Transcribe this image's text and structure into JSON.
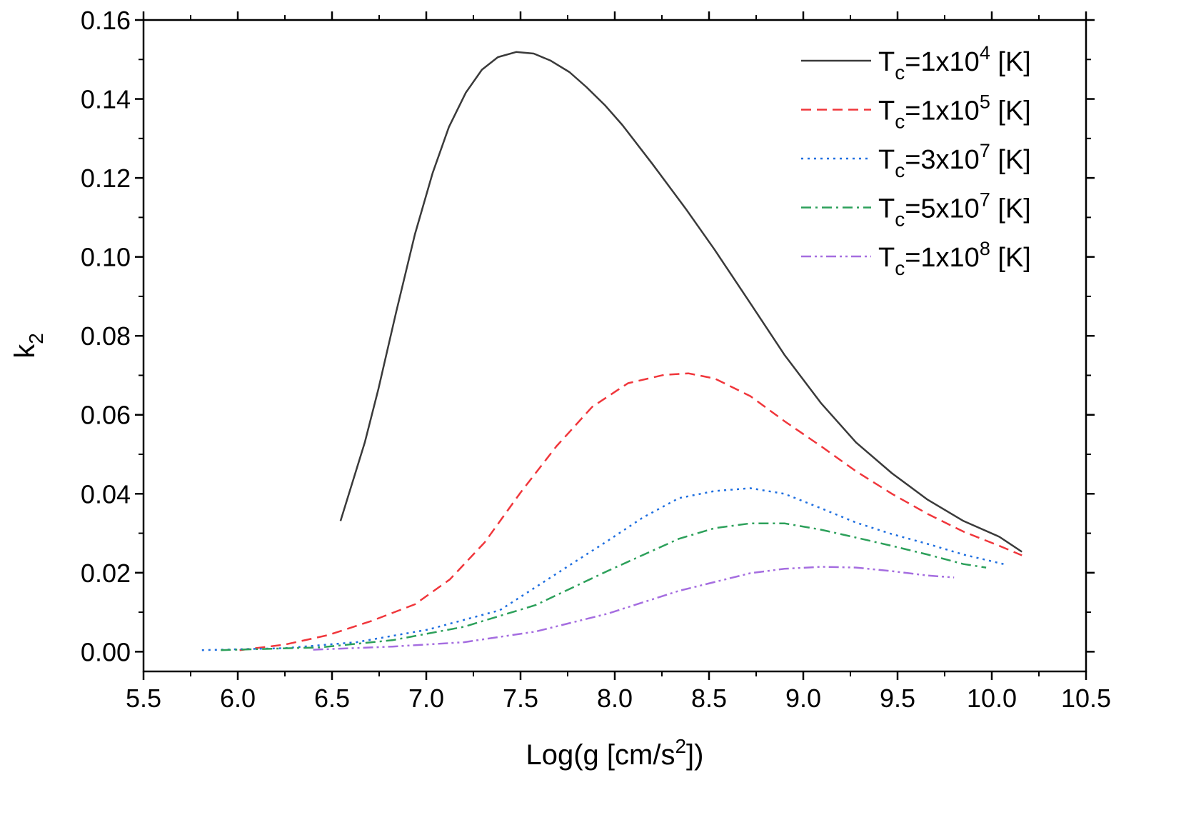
{
  "chart_data": {
    "type": "line",
    "title": "",
    "xlabel": {
      "text": "Log(g [cm/s",
      "sup": "2",
      "after": "])"
    },
    "ylabel": {
      "text": "k",
      "sub": "2"
    },
    "xlim": [
      5.5,
      10.5
    ],
    "ylim": [
      -0.005,
      0.16
    ],
    "xticks": [
      "5.5",
      "6.0",
      "6.5",
      "7.0",
      "7.5",
      "8.0",
      "8.5",
      "9.0",
      "9.5",
      "10.0",
      "10.5"
    ],
    "yticks": [
      "0.00",
      "0.02",
      "0.04",
      "0.06",
      "0.08",
      "0.10",
      "0.12",
      "0.14",
      "0.16"
    ],
    "grid": false,
    "legend_placement": "top-right",
    "series": [
      {
        "name": {
          "base": "T",
          "sub": "c",
          "mant": "=1x10",
          "exp": "4",
          "unit": " [K]"
        },
        "color": "#3a3a3a",
        "dash": "solid",
        "x": [
          6.545,
          6.674,
          6.746,
          6.84,
          6.94,
          7.034,
          7.12,
          7.21,
          7.295,
          7.38,
          7.477,
          7.57,
          7.66,
          7.76,
          7.85,
          7.95,
          8.04,
          8.2,
          8.375,
          8.53,
          8.72,
          8.9,
          9.095,
          9.28,
          9.47,
          9.66,
          9.85,
          10.04,
          10.16
        ],
        "y": [
          0.0331,
          0.053,
          0.0665,
          0.086,
          0.1058,
          0.1213,
          0.1329,
          0.1416,
          0.1474,
          0.1506,
          0.1519,
          0.1515,
          0.1497,
          0.1468,
          0.143,
          0.1383,
          0.1334,
          0.1235,
          0.1123,
          0.1018,
          0.0882,
          0.0752,
          0.0629,
          0.053,
          0.0452,
          0.0385,
          0.0331,
          0.0291,
          0.0253
        ]
      },
      {
        "name": {
          "base": "T",
          "sub": "c",
          "mant": "=1x10",
          "exp": "5",
          "unit": " [K]"
        },
        "color": "#f0363b",
        "dash": "dashed",
        "x": [
          6.01,
          6.25,
          6.48,
          6.71,
          6.94,
          7.125,
          7.31,
          7.5,
          7.69,
          7.88,
          8.07,
          8.26,
          8.39,
          8.53,
          8.72,
          8.9,
          9.095,
          9.28,
          9.47,
          9.66,
          9.85,
          10.04,
          10.16
        ],
        "y": [
          0.0004,
          0.0018,
          0.0042,
          0.0078,
          0.012,
          0.0183,
          0.0277,
          0.0403,
          0.052,
          0.062,
          0.068,
          0.0701,
          0.0705,
          0.0692,
          0.0647,
          0.0584,
          0.052,
          0.0457,
          0.04,
          0.0349,
          0.0304,
          0.0268,
          0.0244
        ]
      },
      {
        "name": {
          "base": "T",
          "sub": "c",
          "mant": "=3x10",
          "exp": "7",
          "unit": " [K]"
        },
        "color": "#1f6fe0",
        "dash": "dotted",
        "x": [
          5.81,
          6.25,
          6.63,
          7.01,
          7.39,
          7.77,
          7.96,
          8.15,
          8.34,
          8.53,
          8.72,
          8.9,
          9.095,
          9.28,
          9.47,
          9.66,
          9.85,
          10.08
        ],
        "y": [
          0.0004,
          0.0009,
          0.0024,
          0.0056,
          0.0105,
          0.0222,
          0.028,
          0.034,
          0.0389,
          0.0407,
          0.0414,
          0.04,
          0.0363,
          0.0327,
          0.0298,
          0.0273,
          0.0246,
          0.022
        ]
      },
      {
        "name": {
          "base": "T",
          "sub": "c",
          "mant": "=5x10",
          "exp": "7",
          "unit": " [K]"
        },
        "color": "#2ca05a",
        "dash": "dashdot",
        "x": [
          5.91,
          6.44,
          6.82,
          7.2,
          7.58,
          7.96,
          8.34,
          8.53,
          8.72,
          8.9,
          9.095,
          9.28,
          9.47,
          9.66,
          9.85,
          9.97
        ],
        "y": [
          0.0004,
          0.0011,
          0.0029,
          0.0063,
          0.0118,
          0.0204,
          0.0286,
          0.0313,
          0.0325,
          0.0325,
          0.0309,
          0.0289,
          0.0268,
          0.0246,
          0.0222,
          0.0213
        ]
      },
      {
        "name": {
          "base": "T",
          "sub": "c",
          "mant": "=1x10",
          "exp": "8",
          "unit": " [K]"
        },
        "color": "#a56de0",
        "dash": "dashdotdot",
        "x": [
          6.4,
          6.82,
          7.2,
          7.58,
          7.96,
          8.34,
          8.72,
          8.9,
          9.095,
          9.28,
          9.47,
          9.66,
          9.8
        ],
        "y": [
          0.0005,
          0.0013,
          0.0024,
          0.0051,
          0.0096,
          0.0154,
          0.0199,
          0.021,
          0.0215,
          0.0213,
          0.0204,
          0.0193,
          0.0188
        ]
      }
    ]
  }
}
